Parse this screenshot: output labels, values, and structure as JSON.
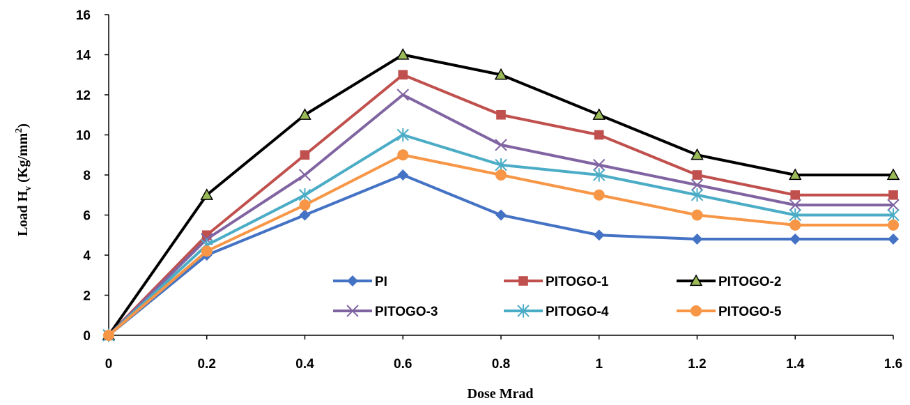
{
  "chart_data": {
    "type": "line",
    "xlabel": "Dose Mrad",
    "ylabel": {
      "prefix": "Load  H",
      "sub": "v",
      "unit": " (Kg/mm",
      "sup": "2",
      "close": ")"
    },
    "xlim": [
      0,
      1.6
    ],
    "ylim": [
      0,
      16
    ],
    "x_ticks": [
      "0",
      "0.2",
      "0.4",
      "0.6",
      "0.8",
      "1",
      "1.2",
      "1.4",
      "1.6"
    ],
    "y_ticks": [
      "0",
      "2",
      "4",
      "6",
      "8",
      "10",
      "12",
      "14",
      "16"
    ],
    "grid": false,
    "legend_position": "lower-center",
    "x": [
      0,
      0.2,
      0.4,
      0.6,
      0.8,
      1.0,
      1.2,
      1.4,
      1.6
    ],
    "series": [
      {
        "name": "PI",
        "color": "#4472C4",
        "marker": "diamond",
        "values": [
          0,
          4,
          6,
          8,
          6,
          5,
          4.8,
          4.8,
          4.8
        ]
      },
      {
        "name": "PITOGO-1",
        "color": "#C0504D",
        "marker": "square",
        "values": [
          0,
          5,
          9,
          13,
          11,
          10,
          8,
          7,
          7
        ]
      },
      {
        "name": "PITOGO-2",
        "color": "#000000",
        "marker": "triangle",
        "values": [
          0,
          7,
          11,
          14,
          13,
          11,
          9,
          8,
          8
        ]
      },
      {
        "name": "PITOGO-3",
        "color": "#8064A2",
        "marker": "x",
        "values": [
          0,
          4.8,
          8,
          12,
          9.5,
          8.5,
          7.5,
          6.5,
          6.5
        ]
      },
      {
        "name": "PITOGO-4",
        "color": "#4BACC6",
        "marker": "star",
        "values": [
          0,
          4.5,
          7,
          10,
          8.5,
          8,
          7,
          6,
          6
        ]
      },
      {
        "name": "PITOGO-5",
        "color": "#F79646",
        "marker": "circle",
        "values": [
          0,
          4.2,
          6.5,
          9,
          8,
          7,
          6,
          5.5,
          5.5
        ]
      }
    ]
  }
}
